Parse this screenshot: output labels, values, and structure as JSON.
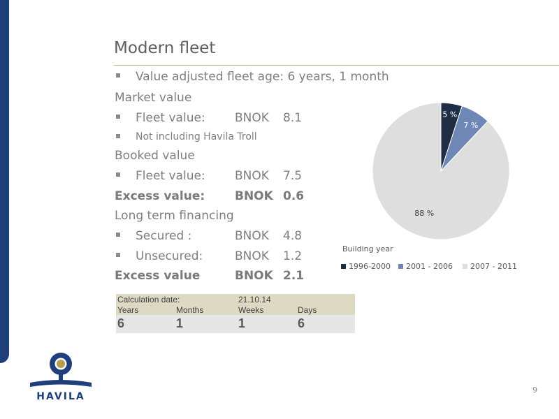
{
  "slide": {
    "title": "Modern fleet",
    "page_number": "9"
  },
  "content": {
    "fleet_age": "Value adjusted fleet age: 6 years, 1 month",
    "market_value_heading": "Market value",
    "market_fleet_label": "Fleet value:",
    "market_fleet_unit": "BNOK",
    "market_fleet_value": "8.1",
    "market_note": "Not including Havila Troll",
    "booked_value_heading": "Booked value",
    "booked_fleet_label": "Fleet value:",
    "booked_fleet_unit": "BNOK",
    "booked_fleet_value": "7.5",
    "excess1_label": "Excess value:",
    "excess1_unit": "BNOK",
    "excess1_value": "0.6",
    "financing_heading": "Long term financing",
    "secured_label": "Secured :",
    "secured_unit": "BNOK",
    "secured_value": "4.8",
    "unsecured_label": "Unsecured:",
    "unsecured_unit": "BNOK",
    "unsecured_value": "1.2",
    "excess2_label": "Excess value",
    "excess2_unit": "BNOK",
    "excess2_value": "2.1"
  },
  "calc_table": {
    "date_label": "Calculation date:",
    "date_value": "21.10.14",
    "headers": [
      "Years",
      "Months",
      "Weeks",
      "Days"
    ],
    "values": [
      "6",
      "1",
      "1",
      "6"
    ]
  },
  "chart_data": {
    "type": "pie",
    "title": "",
    "legend_title": "Building year",
    "legend_position": "bottom",
    "categories": [
      "1996-2000",
      "2001 - 2006",
      "2007 - 2011"
    ],
    "values": [
      5,
      7,
      88
    ],
    "labels": [
      "5 %",
      "7 %",
      "88 %"
    ],
    "colors": [
      "#1f2d45",
      "#6f87b4",
      "#dedede"
    ]
  },
  "logo": {
    "text": "HAVILA",
    "colors": {
      "navy": "#1f3f7a",
      "gold": "#b99b52"
    }
  }
}
